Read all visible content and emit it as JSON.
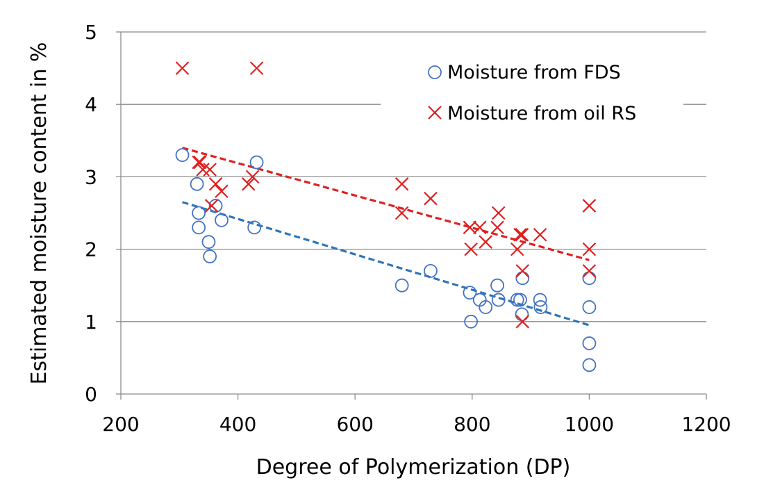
{
  "chart_data": {
    "type": "scatter",
    "title": "",
    "xlabel": "Degree of Polymerization (DP)",
    "ylabel": "Estimated moisture content in %",
    "xlim": [
      200,
      1200
    ],
    "ylim": [
      0,
      5
    ],
    "x_ticks": [
      "200",
      "400",
      "600",
      "800",
      "1000",
      "1200"
    ],
    "y_ticks": [
      "0",
      "1",
      "2",
      "3",
      "4",
      "5"
    ],
    "grid": "horizontal",
    "legend_position": "top-right",
    "series": [
      {
        "name": "Moisture from FDS",
        "marker": "circle",
        "color": "#4472C4",
        "points": [
          [
            305,
            3.3
          ],
          [
            330,
            2.9
          ],
          [
            333,
            2.5
          ],
          [
            333,
            2.3
          ],
          [
            350,
            2.1
          ],
          [
            352,
            1.9
          ],
          [
            362,
            2.6
          ],
          [
            372,
            2.4
          ],
          [
            428,
            2.3
          ],
          [
            432,
            3.2
          ],
          [
            680,
            1.5
          ],
          [
            729,
            1.7
          ],
          [
            796,
            1.4
          ],
          [
            798,
            1.0
          ],
          [
            813,
            1.3
          ],
          [
            823,
            1.2
          ],
          [
            843,
            1.5
          ],
          [
            845,
            1.3
          ],
          [
            877,
            1.3
          ],
          [
            882,
            1.3
          ],
          [
            885,
            1.1
          ],
          [
            886,
            1.6
          ],
          [
            916,
            1.3
          ],
          [
            917,
            1.2
          ],
          [
            1000,
            1.6
          ],
          [
            1000,
            1.2
          ],
          [
            1000,
            0.7
          ],
          [
            1000,
            0.4
          ]
        ],
        "trend": {
          "x": [
            305,
            1000
          ],
          "y": [
            2.65,
            0.95
          ],
          "color": "#2E75B6"
        }
      },
      {
        "name": "Moisture from oil RS",
        "marker": "x",
        "color": "#E02020",
        "points": [
          [
            305,
            4.5
          ],
          [
            432,
            4.5
          ],
          [
            333,
            3.2
          ],
          [
            335,
            3.2
          ],
          [
            340,
            3.1
          ],
          [
            352,
            3.1
          ],
          [
            355,
            2.6
          ],
          [
            362,
            2.9
          ],
          [
            372,
            2.8
          ],
          [
            418,
            2.9
          ],
          [
            425,
            3.0
          ],
          [
            680,
            2.9
          ],
          [
            680,
            2.5
          ],
          [
            729,
            2.7
          ],
          [
            796,
            2.3
          ],
          [
            798,
            2.0
          ],
          [
            813,
            2.3
          ],
          [
            823,
            2.1
          ],
          [
            843,
            2.3
          ],
          [
            845,
            2.5
          ],
          [
            877,
            2.0
          ],
          [
            882,
            2.2
          ],
          [
            885,
            2.2
          ],
          [
            886,
            1.7
          ],
          [
            886,
            1.0
          ],
          [
            916,
            2.2
          ],
          [
            1000,
            2.6
          ],
          [
            1000,
            2.0
          ],
          [
            1000,
            1.7
          ]
        ],
        "trend": {
          "x": [
            305,
            1000
          ],
          "y": [
            3.4,
            1.85
          ],
          "color": "#E02020"
        }
      }
    ]
  }
}
